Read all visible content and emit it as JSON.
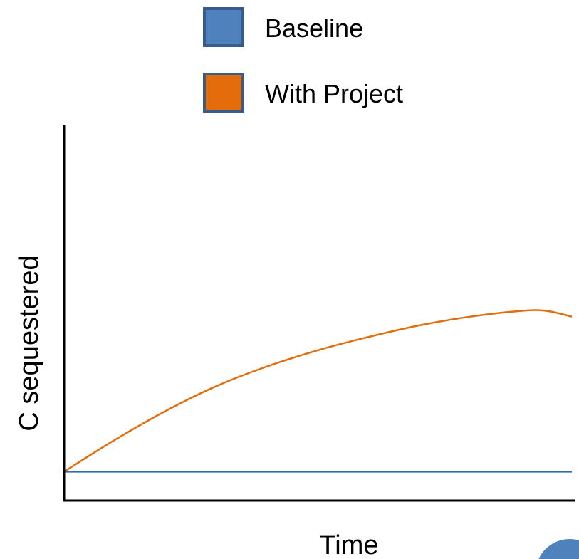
{
  "chart_data": {
    "type": "line",
    "title": "",
    "xlabel": "Time",
    "ylabel": "C sequestered",
    "xlim": [
      0,
      10
    ],
    "ylim": [
      -0.5,
      6
    ],
    "grid": false,
    "ticks_shown": false,
    "legend_placement": "top-center",
    "series": [
      {
        "name": "Baseline",
        "color": "#2f6fb0",
        "legend_fill": "#4f81bd",
        "legend_border": "#385d8a",
        "x": [
          0,
          10
        ],
        "y": [
          0,
          0
        ]
      },
      {
        "name": "With Project",
        "color": "#e46c0a",
        "legend_fill": "#e46c0a",
        "legend_border": "#385d8a",
        "x": [
          0,
          1,
          2,
          3,
          4,
          5,
          6,
          7,
          8,
          9,
          9.5,
          10
        ],
        "y": [
          0,
          0.55,
          1.05,
          1.48,
          1.82,
          2.1,
          2.33,
          2.53,
          2.68,
          2.78,
          2.78,
          2.68
        ]
      }
    ],
    "decoration": {
      "corner_circle_color": "#4f81bd"
    }
  }
}
